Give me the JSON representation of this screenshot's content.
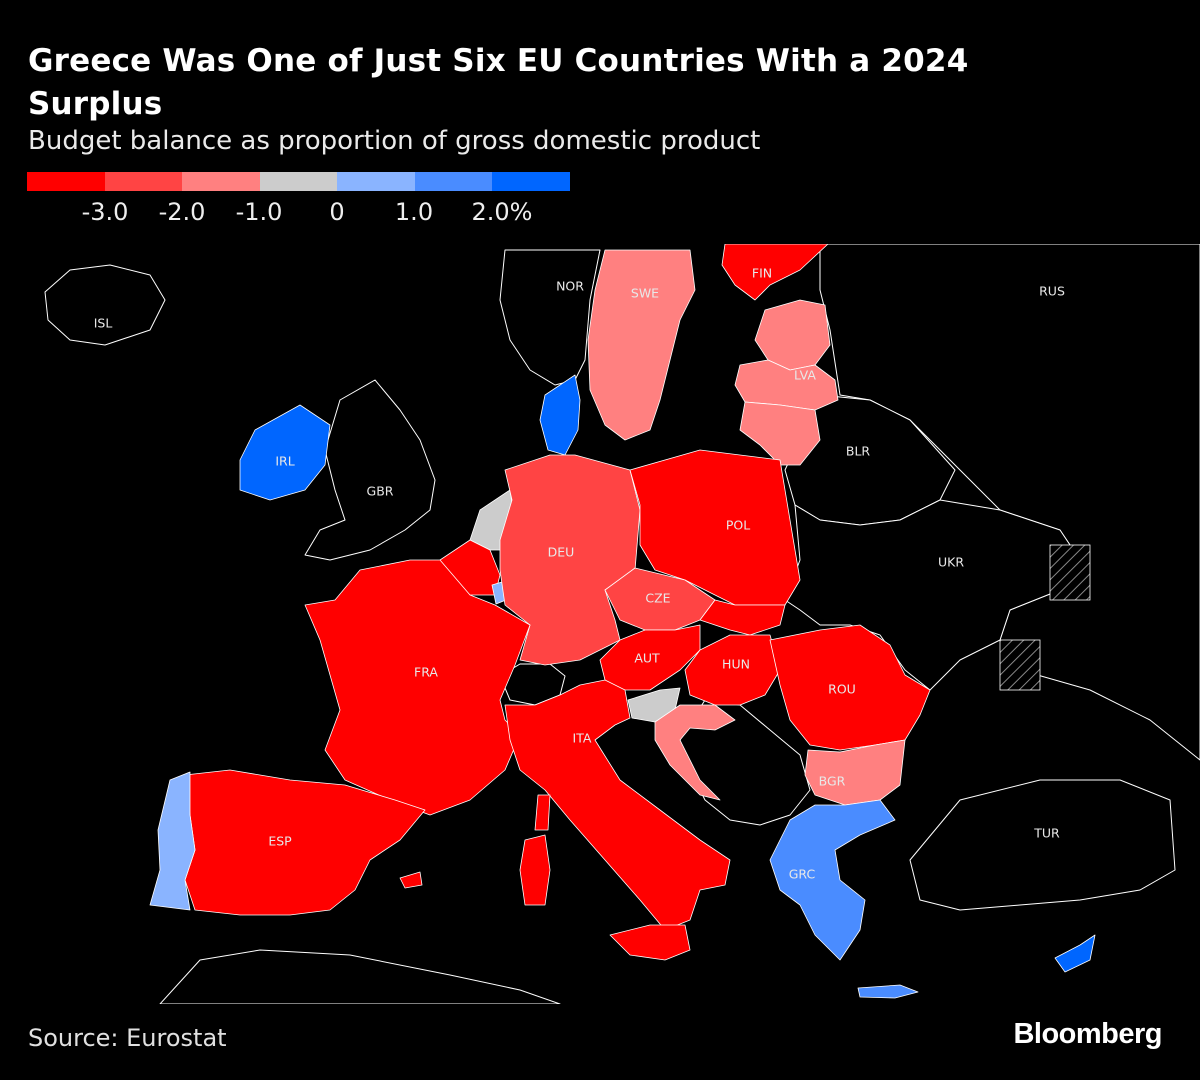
{
  "header": {
    "title": "Greece Was One of Just Six EU Countries With a 2024 Surplus",
    "subtitle": "Budget balance as proportion of gross domestic product"
  },
  "legend": {
    "swatches": [
      "#ff0000",
      "#ff4444",
      "#ff8080",
      "#cccccc",
      "#8ab4ff",
      "#4a8cff",
      "#0066ff"
    ],
    "ticks": [
      "-3.0",
      "-2.0",
      "-1.0",
      "0",
      "1.0",
      "2.0%"
    ]
  },
  "colors": {
    "lt_-3": "#ff0000",
    "-3_-2": "#ff4444",
    "-2_-1": "#ff8080",
    "-1_0": "#cccccc",
    "0_1": "#8ab4ff",
    "1_2": "#4a8cff",
    "gt_2": "#0066ff",
    "non_eu": "#000000"
  },
  "map": {
    "labels": {
      "ISL": "ISL",
      "NOR": "NOR",
      "SWE": "SWE",
      "FIN": "FIN",
      "RUS": "RUS",
      "LVA": "LVA",
      "IRL": "IRL",
      "GBR": "GBR",
      "BLR": "BLR",
      "DEU": "DEU",
      "POL": "POL",
      "UKR": "UKR",
      "CZE": "CZE",
      "FRA": "FRA",
      "AUT": "AUT",
      "HUN": "HUN",
      "ROU": "ROU",
      "ITA": "ITA",
      "BGR": "BGR",
      "ESP": "ESP",
      "TUR": "TUR",
      "GRC": "GRC"
    }
  },
  "footer": {
    "source": "Source: Eurostat",
    "logo": "Bloomberg"
  }
}
